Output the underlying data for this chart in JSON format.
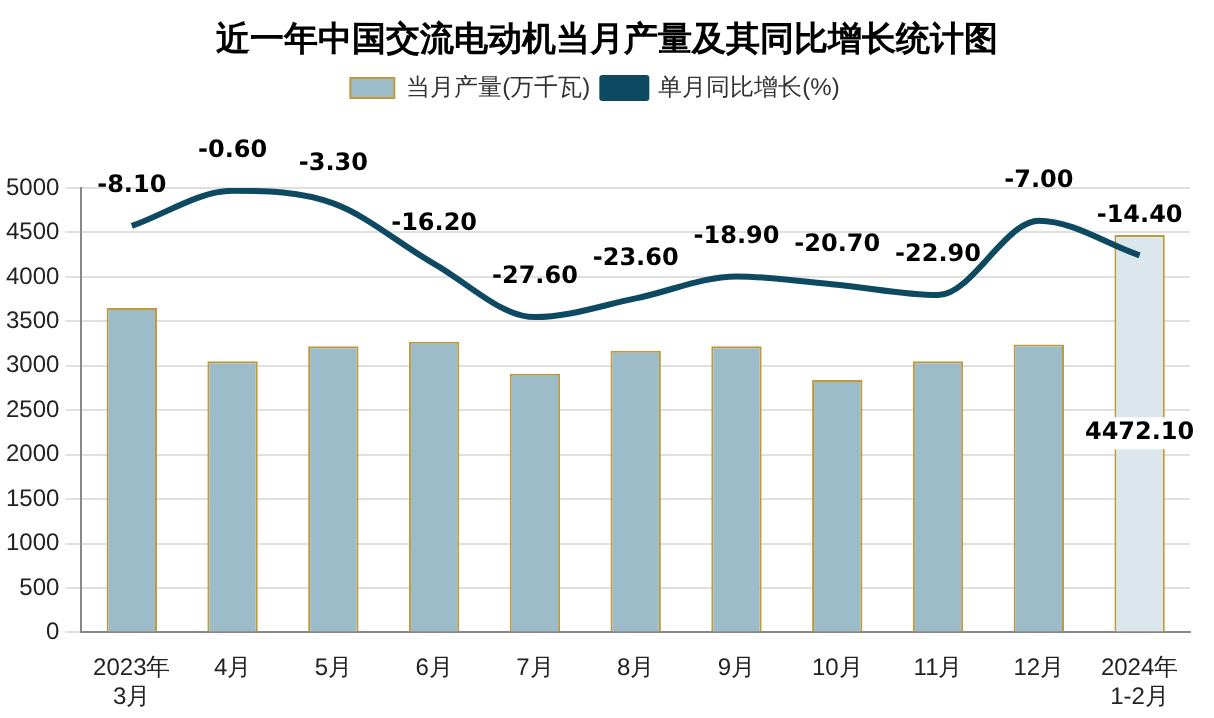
{
  "chart_data": {
    "type": "bar",
    "title": "近一年中国交流电动机当月产量及其同比增长统计图",
    "categories": [
      "2023年3月",
      "4月",
      "5月",
      "6月",
      "7月",
      "8月",
      "9月",
      "10月",
      "11月",
      "12月",
      "2024年1-2月"
    ],
    "series": [
      {
        "name": "当月产量(万千瓦)",
        "colors": [
          "#9dbcc9",
          "#9dbcc9",
          "#9dbcc9",
          "#9dbcc9",
          "#9dbcc9",
          "#9dbcc9",
          "#9dbcc9",
          "#9dbcc9",
          "#9dbcc9",
          "#9dbcc9",
          "#dbe7ed"
        ],
        "values": [
          3650,
          3050,
          3220,
          3270,
          2910,
          3170,
          3220,
          2840,
          3050,
          3240,
          4472.1
        ],
        "value_labels": [
          null,
          null,
          null,
          null,
          null,
          null,
          null,
          null,
          null,
          null,
          "4472.10"
        ]
      },
      {
        "name": "单月同比增长(%)",
        "type": "line",
        "axis": "y2",
        "color": "#0d4a62",
        "values": [
          -8.1,
          -0.6,
          -3.3,
          -16.2,
          -27.6,
          -23.6,
          -18.9,
          -20.7,
          -22.9,
          -7.0,
          -14.4
        ],
        "value_labels": [
          "-8.10",
          "-0.60",
          "-3.30",
          "-16.20",
          "-27.60",
          "-23.60",
          "-18.90",
          "-20.70",
          "-22.90",
          "-7.00",
          "-14.40"
        ]
      }
    ],
    "ylim": [
      0,
      5000
    ],
    "yticks": [
      0,
      500,
      1000,
      1500,
      2000,
      2500,
      3000,
      3500,
      4000,
      4500,
      5000
    ],
    "y2lim": [
      -95,
      0
    ],
    "grid": "y",
    "legend": "top",
    "marker": "none",
    "line_style": "solid"
  }
}
